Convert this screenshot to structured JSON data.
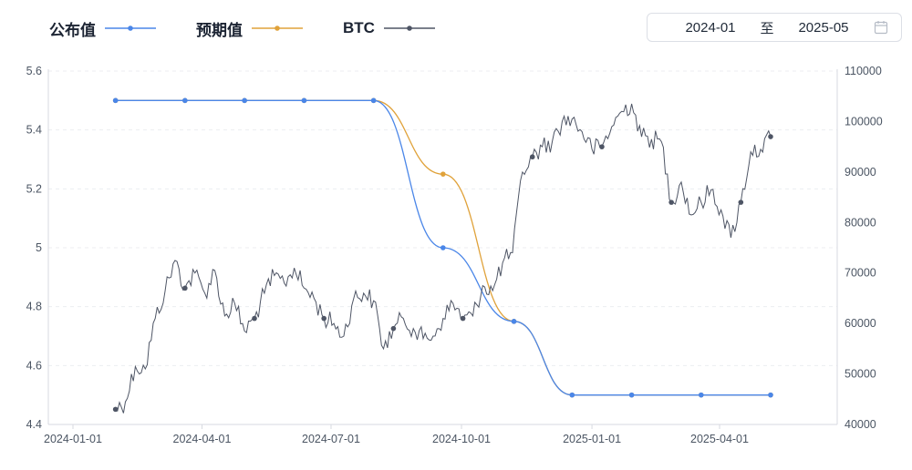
{
  "legend": [
    {
      "label": "公布值",
      "color": "#4a86e8"
    },
    {
      "label": "预期值",
      "color": "#e0a23a"
    },
    {
      "label": "BTC",
      "color": "#4e5565"
    }
  ],
  "date_range": {
    "start": "2024-01",
    "separator": "至",
    "end": "2025-05",
    "icon": "calendar-icon"
  },
  "chart_data": {
    "type": "line",
    "x_ticks": [
      "2024-01-01",
      "2024-04-01",
      "2024-07-01",
      "2024-10-01",
      "2025-01-01",
      "2025-04-01"
    ],
    "y_left": {
      "min": 4.4,
      "max": 5.6,
      "ticks": [
        "4.4",
        "4.6",
        "4.8",
        "5",
        "5.2",
        "5.4",
        "5.6"
      ]
    },
    "y_right": {
      "min": 40000,
      "max": 110000,
      "ticks": [
        "40000",
        "50000",
        "60000",
        "70000",
        "80000",
        "90000",
        "100000",
        "110000"
      ]
    },
    "grid": "horizontal dashed",
    "series": [
      {
        "name": "公布值",
        "axis": "left",
        "color": "#4a86e8",
        "points": [
          [
            "2024-01-31",
            5.5
          ],
          [
            "2024-03-20",
            5.5
          ],
          [
            "2024-05-01",
            5.5
          ],
          [
            "2024-06-12",
            5.5
          ],
          [
            "2024-07-31",
            5.5
          ],
          [
            "2024-09-18",
            5.0
          ],
          [
            "2024-11-07",
            4.75
          ],
          [
            "2024-12-18",
            4.5
          ],
          [
            "2025-01-29",
            4.5
          ],
          [
            "2025-03-19",
            4.5
          ],
          [
            "2025-05-07",
            4.5
          ]
        ]
      },
      {
        "name": "预期值",
        "axis": "left",
        "color": "#e0a23a",
        "points": [
          [
            "2024-01-31",
            5.5
          ],
          [
            "2024-03-20",
            5.5
          ],
          [
            "2024-05-01",
            5.5
          ],
          [
            "2024-06-12",
            5.5
          ],
          [
            "2024-07-31",
            5.5
          ],
          [
            "2024-09-18",
            5.25
          ],
          [
            "2024-11-07",
            4.75
          ],
          [
            "2024-12-18",
            4.5
          ],
          [
            "2025-01-29",
            4.5
          ],
          [
            "2025-03-19",
            4.5
          ],
          [
            "2025-05-07",
            4.5
          ]
        ]
      },
      {
        "name": "BTC",
        "axis": "right",
        "color": "#4e5565",
        "points": [
          [
            "2024-01-31",
            43000
          ],
          [
            "2024-02-07",
            44500
          ],
          [
            "2024-02-14",
            51500
          ],
          [
            "2024-02-21",
            51000
          ],
          [
            "2024-02-28",
            61000
          ],
          [
            "2024-03-06",
            66500
          ],
          [
            "2024-03-13",
            72500
          ],
          [
            "2024-03-20",
            67000
          ],
          [
            "2024-03-27",
            70000
          ],
          [
            "2024-04-03",
            66000
          ],
          [
            "2024-04-10",
            70500
          ],
          [
            "2024-04-17",
            61500
          ],
          [
            "2024-04-24",
            64000
          ],
          [
            "2024-05-01",
            58500
          ],
          [
            "2024-05-08",
            61000
          ],
          [
            "2024-05-15",
            66000
          ],
          [
            "2024-05-22",
            69500
          ],
          [
            "2024-05-29",
            68000
          ],
          [
            "2024-06-05",
            71000
          ],
          [
            "2024-06-12",
            67000
          ],
          [
            "2024-06-19",
            65000
          ],
          [
            "2024-06-26",
            61000
          ],
          [
            "2024-07-03",
            60000
          ],
          [
            "2024-07-10",
            57500
          ],
          [
            "2024-07-17",
            65000
          ],
          [
            "2024-07-24",
            66000
          ],
          [
            "2024-07-31",
            64500
          ],
          [
            "2024-08-07",
            55000
          ],
          [
            "2024-08-14",
            59000
          ],
          [
            "2024-08-21",
            61000
          ],
          [
            "2024-08-28",
            59000
          ],
          [
            "2024-09-04",
            57000
          ],
          [
            "2024-09-11",
            57500
          ],
          [
            "2024-09-18",
            61000
          ],
          [
            "2024-09-25",
            64000
          ],
          [
            "2024-10-02",
            61000
          ],
          [
            "2024-10-09",
            61500
          ],
          [
            "2024-10-16",
            67500
          ],
          [
            "2024-10-23",
            66500
          ],
          [
            "2024-10-30",
            72000
          ],
          [
            "2024-11-06",
            74000
          ],
          [
            "2024-11-13",
            90000
          ],
          [
            "2024-11-20",
            93000
          ],
          [
            "2024-11-27",
            95000
          ],
          [
            "2024-12-04",
            96000
          ],
          [
            "2024-12-11",
            100000
          ],
          [
            "2024-12-18",
            100500
          ],
          [
            "2024-12-25",
            98000
          ],
          [
            "2025-01-01",
            94500
          ],
          [
            "2025-01-08",
            95000
          ],
          [
            "2025-01-15",
            99000
          ],
          [
            "2025-01-22",
            102000
          ],
          [
            "2025-01-29",
            103500
          ],
          [
            "2025-02-05",
            97000
          ],
          [
            "2025-02-12",
            96500
          ],
          [
            "2025-02-19",
            96000
          ],
          [
            "2025-02-26",
            84000
          ],
          [
            "2025-03-05",
            88000
          ],
          [
            "2025-03-12",
            81500
          ],
          [
            "2025-03-19",
            84000
          ],
          [
            "2025-03-26",
            86500
          ],
          [
            "2025-04-02",
            82500
          ],
          [
            "2025-04-09",
            77000
          ],
          [
            "2025-04-16",
            84000
          ],
          [
            "2025-04-23",
            94000
          ],
          [
            "2025-04-30",
            94500
          ],
          [
            "2025-05-07",
            97000
          ]
        ]
      }
    ]
  }
}
